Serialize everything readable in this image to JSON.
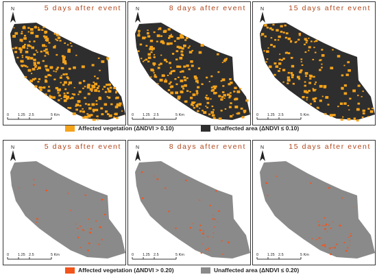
{
  "rows": [
    {
      "panels": [
        {
          "title": "5 days after event"
        },
        {
          "title": "8 days after event"
        },
        {
          "title": "15 days after event"
        }
      ],
      "scale": {
        "labels": [
          "0",
          "1.25",
          "2.5",
          "5 Km"
        ]
      },
      "legend": [
        {
          "label": "Affected vegetation (ΔNDVI > 0.10)",
          "color": "#f5a31a"
        },
        {
          "label": "Unaffected area (ΔNDVI ≤ 0.10)",
          "color": "#2e2e2e"
        }
      ],
      "affected_color": "#f5a31a",
      "base_color": "#2e2e2e"
    },
    {
      "panels": [
        {
          "title": "5 days after event"
        },
        {
          "title": "8 days after event"
        },
        {
          "title": "15 days after event"
        }
      ],
      "scale": {
        "labels": [
          "0",
          "1.25",
          "2.5",
          "5 Km"
        ]
      },
      "legend": [
        {
          "label": "Affected vegetation (ΔNDVI > 0.20)",
          "color": "#f2541b"
        },
        {
          "label": "Unaffected area (ΔNDVI ≤ 0.20)",
          "color": "#8a8a8a"
        }
      ],
      "affected_color": "#f2541b",
      "base_color": "#8a8a8a"
    }
  ],
  "north_label": "N"
}
